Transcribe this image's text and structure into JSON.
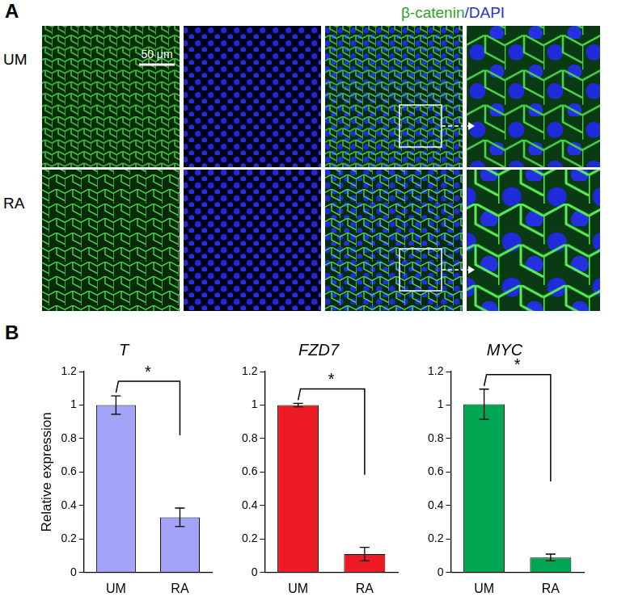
{
  "panel_labels": [
    "A",
    "B"
  ],
  "images": {
    "stain_labels": [
      "β-catenin",
      "/DAPI"
    ],
    "rows": [
      "UM",
      "RA"
    ],
    "scale_bar": "50 μm"
  },
  "chart_data": [
    {
      "type": "bar",
      "title": "T",
      "y_label": "Relative expression",
      "categories": [
        "UM",
        "RA"
      ],
      "values": [
        1.0,
        0.33
      ],
      "errors": [
        0.055,
        0.055
      ],
      "color": "#a3a3f7",
      "ylim": [
        0,
        1.2
      ],
      "yticks": [
        0,
        0.2,
        0.4,
        0.6,
        0.8,
        1,
        1.2
      ],
      "grid": false,
      "annotation": "*"
    },
    {
      "type": "bar",
      "title": "FZD7",
      "categories": [
        "UM",
        "RA"
      ],
      "values": [
        1.0,
        0.11
      ],
      "errors": [
        0.01,
        0.04
      ],
      "color": "#ed1c24",
      "ylim": [
        0,
        1.2
      ],
      "yticks": [
        0,
        0.2,
        0.4,
        0.6,
        0.8,
        1,
        1.2
      ],
      "grid": false,
      "annotation": "*"
    },
    {
      "type": "bar",
      "title": "MYC",
      "categories": [
        "UM",
        "RA"
      ],
      "values": [
        1.005,
        0.09
      ],
      "errors": [
        0.09,
        0.02
      ],
      "color": "#00a651",
      "ylim": [
        0,
        1.2
      ],
      "yticks": [
        0,
        0.2,
        0.4,
        0.6,
        0.8,
        1,
        1.2
      ],
      "grid": false,
      "annotation": "*"
    }
  ]
}
